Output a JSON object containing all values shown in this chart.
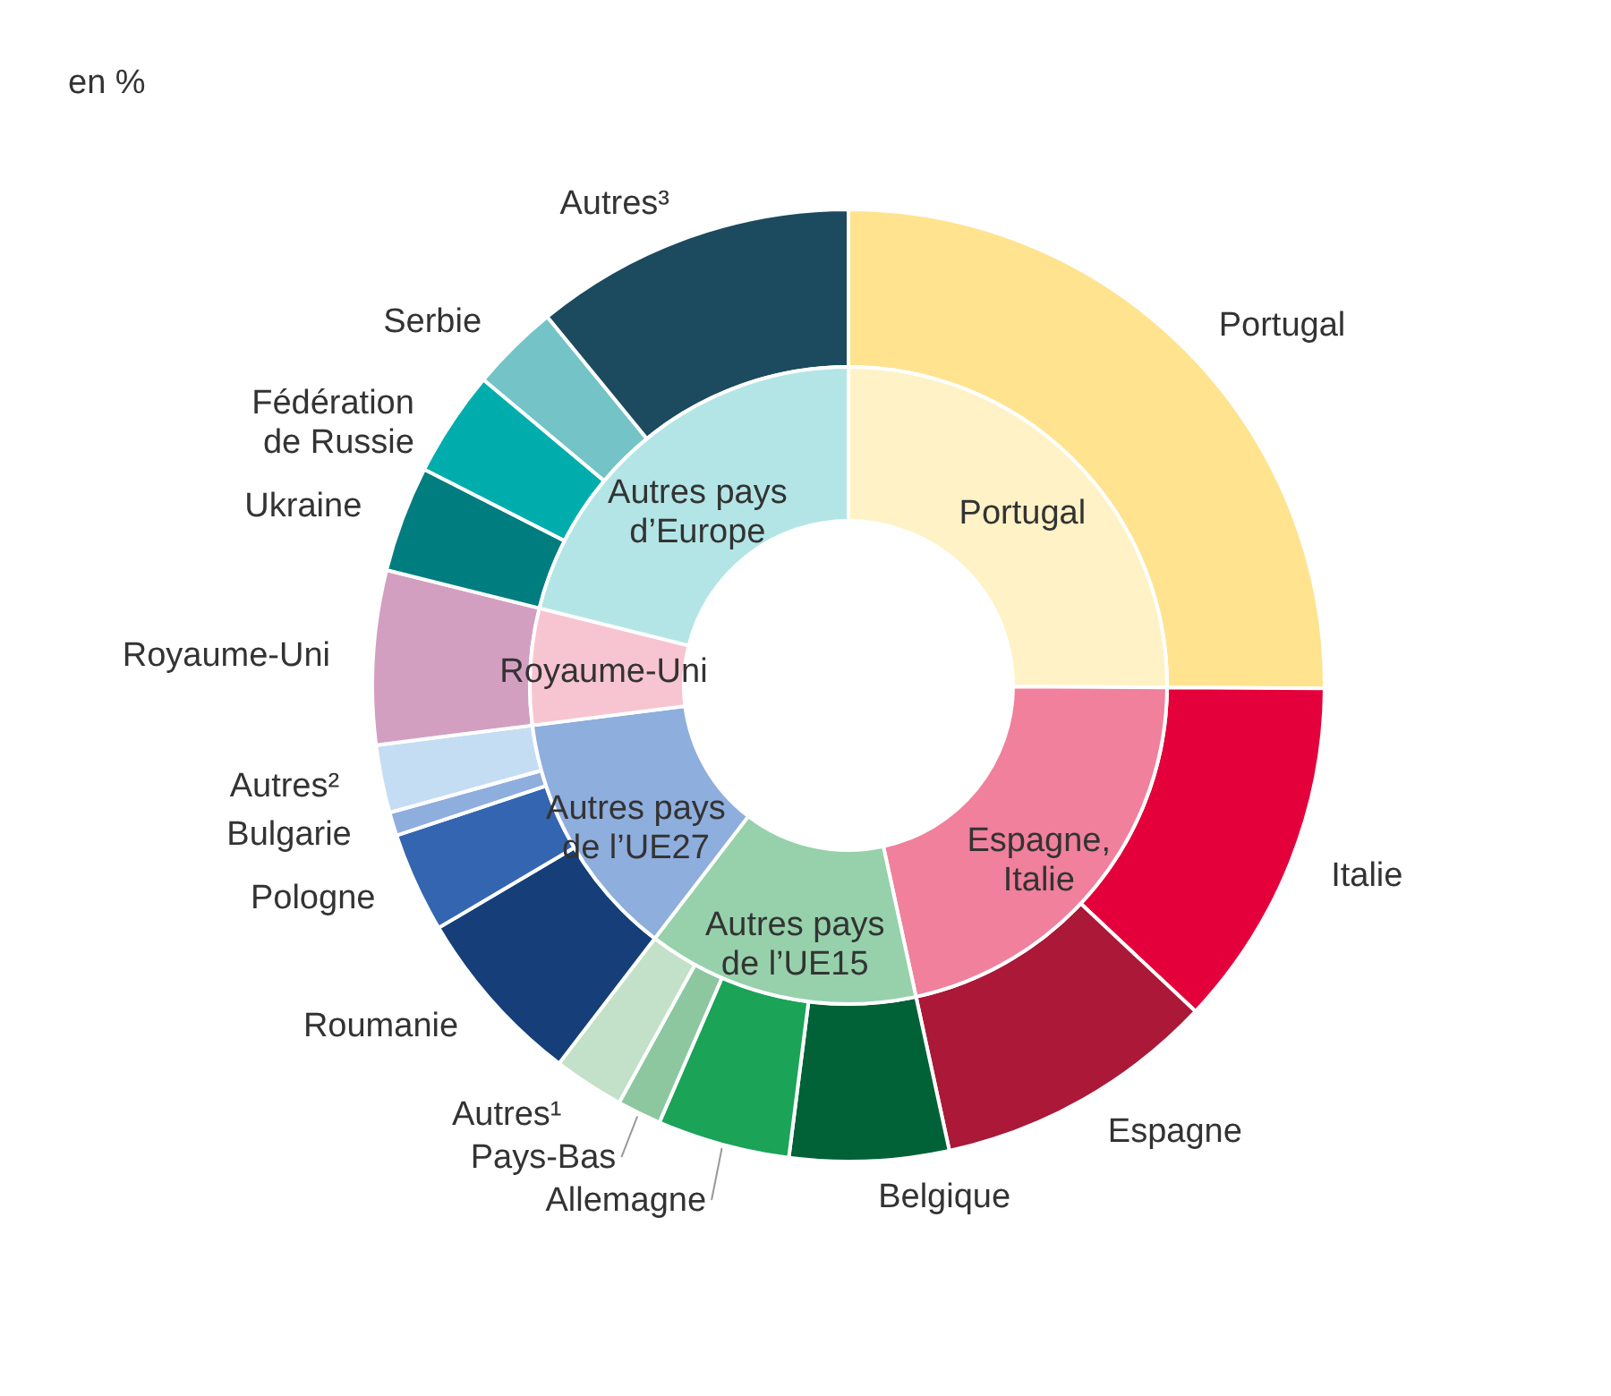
{
  "chart_data": [
    {
      "type": "donut",
      "title": "en %",
      "categories": [
        "Portugal",
        "Italie",
        "Espagne",
        "Belgique",
        "Allemagne",
        "Pays-Bas",
        "Autres¹",
        "Roumanie",
        "Pologne",
        "Bulgarie",
        "Autres²",
        "Royaume-Uni",
        "Ukraine",
        "Fédération de Russie",
        "Serbie",
        "Autres³"
      ],
      "values": [
        25.1,
        11.9,
        9.6,
        5.4,
        4.5,
        1.5,
        2.4,
        6.1,
        3.4,
        0.8,
        2.3,
        5.9,
        3.6,
        3.6,
        3.0,
        10.9
      ],
      "colors": [
        "#ffe38f",
        "#e4003a",
        "#ab1838",
        "#006236",
        "#1ba357",
        "#8cc7a0",
        "#c3e0c8",
        "#163f79",
        "#3465b0",
        "#8eaedd",
        "#c5ddf3",
        "#d39fc1",
        "#007d7f",
        "#00adad",
        "#74c3c7",
        "#1c4a5f"
      ]
    },
    {
      "type": "donut",
      "categories": [
        "Portugal",
        "Espagne, Italie",
        "Autres pays de l’UE15",
        "Autres pays de l’UE27",
        "Royaume-Uni",
        "Autres pays d’Europe"
      ],
      "values": [
        25.1,
        21.5,
        13.8,
        12.6,
        5.9,
        21.1
      ],
      "colors": [
        "#fff2c6",
        "#f0809b",
        "#96d1ab",
        "#8eaedd",
        "#f7c5d1",
        "#b3e5e6"
      ]
    }
  ]
}
